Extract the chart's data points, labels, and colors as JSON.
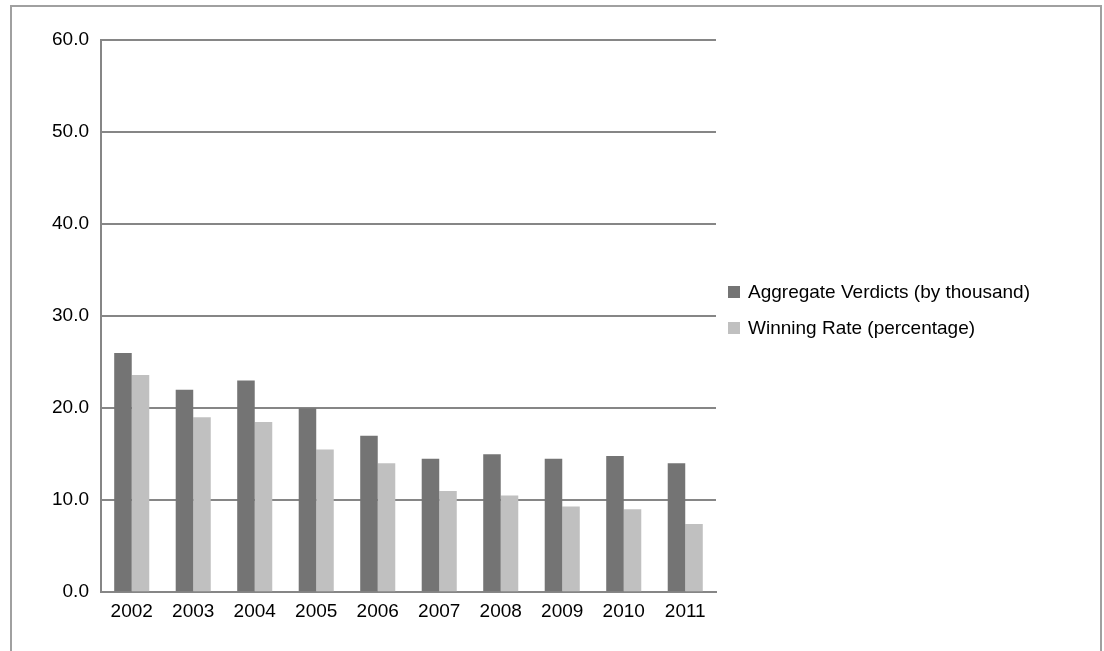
{
  "chart_data": {
    "type": "bar",
    "categories": [
      "2002",
      "2003",
      "2004",
      "2005",
      "2006",
      "2007",
      "2008",
      "2009",
      "2010",
      "2011"
    ],
    "series": [
      {
        "name": "Aggregate Verdicts (by thousand)",
        "color": "#747474",
        "values": [
          26.0,
          22.0,
          23.0,
          20.0,
          17.0,
          14.5,
          15.0,
          14.5,
          14.8,
          14.0
        ]
      },
      {
        "name": "Winning Rate (percentage)",
        "color": "#c0c0c0",
        "values": [
          23.6,
          19.0,
          18.5,
          15.5,
          14.0,
          11.0,
          10.5,
          9.3,
          9.0,
          7.4
        ]
      }
    ],
    "ylim": [
      0,
      60
    ],
    "yticks": [
      {
        "value": 0,
        "label": "0.0"
      },
      {
        "value": 10,
        "label": "10.0"
      },
      {
        "value": 20,
        "label": "20.0"
      },
      {
        "value": 30,
        "label": "30.0"
      },
      {
        "value": 40,
        "label": "40.0"
      },
      {
        "value": 50,
        "label": "50.0"
      },
      {
        "value": 60,
        "label": "60.0"
      }
    ],
    "grid": "y",
    "legend": "right"
  }
}
